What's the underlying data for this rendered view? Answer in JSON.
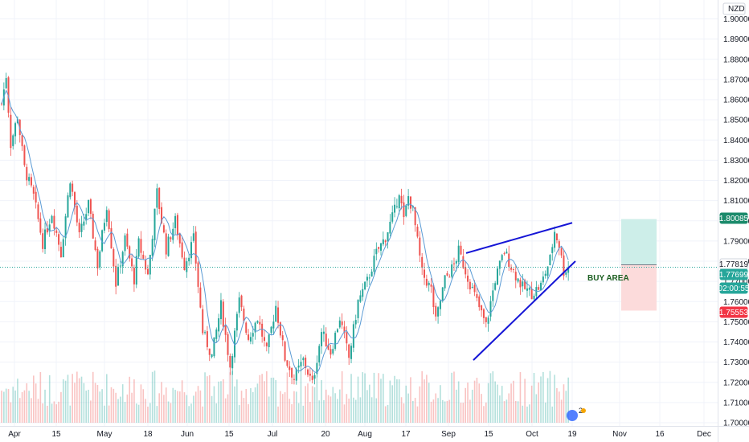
{
  "currency_label": "NZD",
  "annotation": {
    "text": "BUY AREA",
    "color": "#1b5e20"
  },
  "colors": {
    "up": "#26a69a",
    "down": "#ef5350",
    "ma": "#5b9bd5",
    "trendline": "#1515d6",
    "grid": "#f0f3fa",
    "target_zone": "#cdeee9",
    "stop_zone": "#fcdbdb",
    "last_price_line": "#26a69a"
  },
  "price_tags": [
    {
      "label": "1.80085",
      "price": 1.80085,
      "bg": "#1b8a6b",
      "fg": "#ffffff"
    },
    {
      "label": "1.77819",
      "price": 1.77819,
      "bg": "#ffffff",
      "fg": "#131722"
    },
    {
      "label": "1.77699",
      "price": 1.77699,
      "bg": "#26a69a",
      "fg": "#ffffff"
    },
    {
      "label": "02:00:55",
      "price": 1.7727,
      "bg": "#26a69a",
      "fg": "#ffffff"
    },
    {
      "label": "1.75553",
      "price": 1.75553,
      "bg": "#f23645",
      "fg": "#ffffff"
    }
  ],
  "chart_data": {
    "type": "candlestick",
    "symbol_currency": "NZD",
    "y_ticks": [
      "1.90000",
      "1.89000",
      "1.88000",
      "1.87000",
      "1.86000",
      "1.85000",
      "1.84000",
      "1.83000",
      "1.82000",
      "1.81000",
      "1.80000",
      "1.79000",
      "1.78000",
      "1.77000",
      "1.76000",
      "1.75000",
      "1.74000",
      "1.73000",
      "1.72000",
      "1.71000",
      "1.70000"
    ],
    "x_ticks": [
      "Apr",
      "15",
      "May",
      "18",
      "Jun",
      "15",
      "Jul",
      "20",
      "Aug",
      "17",
      "Sep",
      "15",
      "Oct",
      "19",
      "Nov",
      "16",
      "Dec"
    ],
    "ylim": [
      1.7,
      1.9
    ],
    "price_path": [
      [
        0,
        1.858
      ],
      [
        2,
        1.872
      ],
      [
        4,
        1.838
      ],
      [
        7,
        1.852
      ],
      [
        10,
        1.826
      ],
      [
        14,
        1.812
      ],
      [
        18,
        1.789
      ],
      [
        22,
        1.804
      ],
      [
        26,
        1.784
      ],
      [
        30,
        1.821
      ],
      [
        34,
        1.792
      ],
      [
        38,
        1.808
      ],
      [
        42,
        1.778
      ],
      [
        46,
        1.808
      ],
      [
        50,
        1.769
      ],
      [
        54,
        1.791
      ],
      [
        58,
        1.771
      ],
      [
        60,
        1.789
      ],
      [
        64,
        1.773
      ],
      [
        68,
        1.814
      ],
      [
        72,
        1.786
      ],
      [
        76,
        1.8
      ],
      [
        80,
        1.778
      ],
      [
        84,
        1.791
      ],
      [
        88,
        1.745
      ],
      [
        92,
        1.733
      ],
      [
        96,
        1.758
      ],
      [
        100,
        1.728
      ],
      [
        104,
        1.76
      ],
      [
        108,
        1.742
      ],
      [
        112,
        1.752
      ],
      [
        116,
        1.735
      ],
      [
        120,
        1.758
      ],
      [
        124,
        1.732
      ],
      [
        128,
        1.722
      ],
      [
        132,
        1.731
      ],
      [
        136,
        1.719
      ],
      [
        140,
        1.745
      ],
      [
        144,
        1.735
      ],
      [
        148,
        1.752
      ],
      [
        152,
        1.732
      ],
      [
        156,
        1.76
      ],
      [
        160,
        1.77
      ],
      [
        164,
        1.784
      ],
      [
        168,
        1.792
      ],
      [
        172,
        1.805
      ],
      [
        174,
        1.815
      ],
      [
        176,
        1.8
      ],
      [
        178,
        1.812
      ],
      [
        180,
        1.805
      ],
      [
        184,
        1.774
      ],
      [
        188,
        1.766
      ],
      [
        190,
        1.75
      ],
      [
        194,
        1.771
      ],
      [
        198,
        1.778
      ],
      [
        200,
        1.785
      ],
      [
        204,
        1.772
      ],
      [
        208,
        1.76
      ],
      [
        212,
        1.748
      ],
      [
        216,
        1.771
      ],
      [
        220,
        1.785
      ],
      [
        224,
        1.775
      ],
      [
        228,
        1.767
      ],
      [
        232,
        1.764
      ],
      [
        236,
        1.768
      ],
      [
        240,
        1.781
      ],
      [
        242,
        1.795
      ],
      [
        244,
        1.788
      ],
      [
        246,
        1.775
      ],
      [
        248,
        1.777
      ]
    ],
    "moving_average": "blue line following price",
    "trendlines": [
      {
        "name": "upper",
        "from": [
          220,
          1.784
        ],
        "to": [
          283,
          1.799
        ]
      },
      {
        "name": "lower",
        "from": [
          218,
          1.731
        ],
        "to": [
          282,
          1.78
        ]
      }
    ],
    "position_tool": {
      "entry": 1.77819,
      "target": 1.80085,
      "stop": 1.75553
    },
    "last_price": 1.77699,
    "countdown": "02:00:55"
  },
  "widget_badge": "2"
}
